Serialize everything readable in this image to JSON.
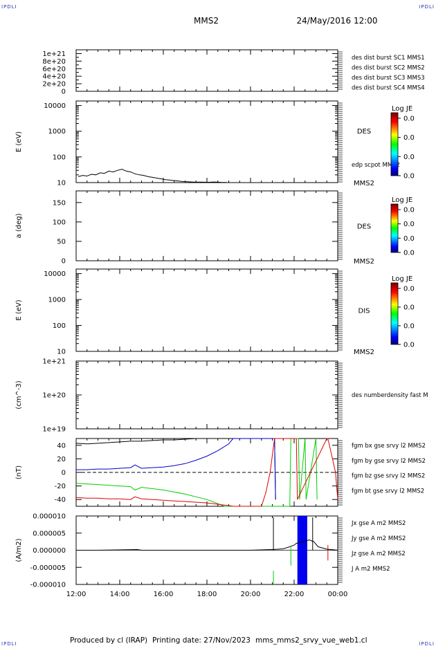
{
  "header": {
    "spacecraft": "MMS2",
    "date": "24/May/2016 12:00",
    "corner_left": "IPDLI",
    "corner_right": "IPDLI",
    "corner_bottom_left": "IPDLI",
    "corner_bottom_right": "IPDLI"
  },
  "footer": {
    "produced": "Produced by cl (IRAP)",
    "printing": "Printing date: 27/Nov/2023",
    "file": "mms_mms2_srvy_vue_web1.cl"
  },
  "colors": {
    "black": "#000000",
    "blue": "#0000cc",
    "magenta": "#cc00cc",
    "red": "#dd0000",
    "green": "#00cc00",
    "jx": "#dd0000",
    "jy": "#00cc00",
    "jz": "#0000ee"
  },
  "colorbar": {
    "title": "Log JE",
    "ticks": [
      "0.0",
      "0.0",
      "0.0",
      "0.0"
    ]
  },
  "chart_data": [
    {
      "id": "p1",
      "type": "line",
      "ylabel": "",
      "yticks": [
        "1e+21",
        "8e+20",
        "6e+20",
        "4e+20",
        "2e+20",
        "0"
      ],
      "ylim": [
        0,
        1.1e+21
      ],
      "legend": [
        {
          "text": "des dist burst SC1 MMS1",
          "color": "#0000cc"
        },
        {
          "text": "des dist burst SC2 MMS2",
          "color": "#cc00cc"
        },
        {
          "text": "des dist burst SC3 MMS3",
          "color": "#dd0000"
        },
        {
          "text": "des dist burst SC4 MMS4",
          "color": "#00cc00"
        }
      ],
      "series": []
    },
    {
      "id": "p2",
      "type": "line",
      "ylabel": "E (eV)",
      "yscale": "log",
      "yticks": [
        "10000",
        "1000",
        "100",
        "10"
      ],
      "ylim": [
        10,
        15000
      ],
      "right_label": "DES",
      "right_small": "edp scpot MMS2",
      "bottom_right": "MMS2",
      "series": [
        {
          "name": "edp scpot MMS2",
          "color": "#000000",
          "x": [
            12.1,
            12.3,
            12.5,
            12.7,
            12.9,
            13.1,
            13.3,
            13.5,
            13.7,
            13.9,
            14.1,
            14.3,
            14.5,
            14.7,
            14.9,
            15.1,
            15.3,
            15.5,
            15.7,
            15.9,
            16.1,
            16.3,
            16.5,
            16.7,
            16.9,
            17.1,
            17.3,
            17.5,
            17.7,
            17.9,
            18.1,
            18.3,
            18.5,
            18.7,
            18.9
          ],
          "y": [
            17,
            19,
            18,
            21,
            20,
            24,
            23,
            28,
            26,
            30,
            33,
            28,
            26,
            22,
            20,
            19,
            17,
            16,
            15,
            14,
            13,
            12.5,
            12,
            11.5,
            11,
            10.8,
            10.6,
            10.4,
            10.5,
            10.4,
            10.3,
            10.6,
            10.4,
            10.2,
            10.1
          ]
        }
      ]
    },
    {
      "id": "p3",
      "type": "heatmap",
      "ylabel": "a (deg)",
      "yticks": [
        "150",
        "100",
        "50",
        "0"
      ],
      "ylim": [
        0,
        180
      ],
      "right_label": "DES",
      "bottom_right": "MMS2",
      "series": []
    },
    {
      "id": "p4",
      "type": "heatmap",
      "ylabel": "E (eV)",
      "yscale": "log",
      "yticks": [
        "10000",
        "1000",
        "100",
        "10"
      ],
      "ylim": [
        10,
        15000
      ],
      "right_label": "DIS",
      "bottom_right": "MMS2",
      "series": []
    },
    {
      "id": "p5",
      "type": "line",
      "ylabel": "(cm^-3)",
      "yscale": "log",
      "yticks": [
        "1e+21",
        "1e+20",
        "1e+19"
      ],
      "ylim": [
        1e+19,
        1e+21
      ],
      "right_small": "des numberdensity fast M",
      "series": []
    },
    {
      "id": "p6",
      "type": "line",
      "ylabel": "(nT)",
      "yticks": [
        "40",
        "20",
        "0",
        "-20",
        "-40"
      ],
      "ylim": [
        -50,
        50
      ],
      "legend": [
        {
          "text": "fgm bx gse srvy l2 MMS2",
          "color": "#dd0000"
        },
        {
          "text": "fgm by gse srvy l2 MMS2",
          "color": "#00cc00"
        },
        {
          "text": "fgm bz gse srvy l2 MMS2",
          "color": "#0000cc"
        },
        {
          "text": "fgm bt gse srvy l2 MMS2",
          "color": "#000000"
        }
      ],
      "series": [
        {
          "name": "fgm bt gse srvy l2 MMS2",
          "color": "#000000",
          "x": [
            12.0,
            12.5,
            13.0,
            13.5,
            14.0,
            14.5,
            15.0,
            15.5,
            16.0,
            16.5,
            17.0,
            17.5,
            21.1,
            21.15
          ],
          "y": [
            43,
            42,
            43,
            44,
            45,
            46,
            46,
            47,
            48,
            48,
            49,
            50,
            50,
            -40
          ]
        },
        {
          "name": "fgm bz gse srvy l2 MMS2",
          "color": "#0000cc",
          "x": [
            12.0,
            12.5,
            13.0,
            13.5,
            14.0,
            14.5,
            14.7,
            15.0,
            15.5,
            16.0,
            16.5,
            17.0,
            17.5,
            18.0,
            18.5,
            19.0,
            19.2,
            21.05,
            21.1,
            21.15
          ],
          "y": [
            4,
            4,
            5,
            5,
            6,
            7,
            11,
            6,
            7,
            8,
            10,
            13,
            18,
            24,
            32,
            42,
            50,
            50,
            50,
            -40
          ]
        },
        {
          "name": "fgm by gse srvy l2 MMS2",
          "color": "#00cc00",
          "x": [
            12.0,
            12.5,
            13.0,
            13.5,
            14.0,
            14.5,
            14.7,
            15.0,
            15.5,
            16.0,
            16.5,
            17.0,
            17.5,
            18.0,
            18.5,
            18.8,
            21.8,
            21.85,
            22.2,
            22.25,
            22.5,
            22.55,
            23.0,
            23.05
          ],
          "y": [
            -16,
            -17,
            -18,
            -19,
            -20,
            -21,
            -26,
            -22,
            -24,
            -26,
            -29,
            -32,
            -36,
            -40,
            -46,
            -50,
            -50,
            50,
            50,
            -40,
            50,
            -40,
            50,
            -40
          ]
        },
        {
          "name": "fgm bx gse srvy l2 MMS2",
          "color": "#dd0000",
          "x": [
            12.0,
            12.5,
            13.0,
            13.5,
            14.0,
            14.5,
            14.7,
            15.0,
            15.5,
            16.0,
            16.5,
            17.0,
            17.5,
            18.0,
            18.5,
            19.0,
            19.2,
            20.5,
            20.7,
            20.9,
            21.1,
            22.1,
            22.15,
            23.5,
            23.55,
            23.9,
            24.0
          ],
          "y": [
            -37,
            -38,
            -38,
            -39,
            -39,
            -40,
            -36,
            -39,
            -40,
            -41,
            -42,
            -43,
            -44,
            -45,
            -47,
            -49,
            -50,
            -50,
            -30,
            0,
            50,
            50,
            -40,
            50,
            50,
            0,
            -40
          ]
        }
      ]
    },
    {
      "id": "p7",
      "type": "line",
      "ylabel": "(A/m2)",
      "yticks": [
        "0.000010",
        "0.000005",
        "0.000000",
        "-0.000005",
        "-0.000010"
      ],
      "ylim": [
        -1e-05,
        1e-05
      ],
      "legend": [
        {
          "text": "Jx gse A m2 MMS2",
          "color": "#dd0000"
        },
        {
          "text": "Jy gse A m2 MMS2",
          "color": "#00cc00"
        },
        {
          "text": "Jz gse A m2 MMS2",
          "color": "#0000ee"
        },
        {
          "text": "J A m2 MMS2",
          "color": "#000000"
        }
      ],
      "xticks": [
        "12:00",
        "14:00",
        "16:00",
        "18:00",
        "20:00",
        "22:00",
        "00:00"
      ],
      "xlim": [
        12,
        24
      ],
      "burst": {
        "start": 22.15,
        "end": 22.6
      },
      "series": [
        {
          "name": "J A m2 MMS2",
          "color": "#000000",
          "x": [
            12.0,
            13.0,
            14.0,
            14.8,
            15.0,
            16.0,
            18.0,
            20.0,
            21.0,
            21.5,
            21.8,
            22.0,
            22.1,
            22.7,
            22.9,
            23.1,
            23.5,
            24.0
          ],
          "y": [
            0,
            0,
            1e-07,
            2e-07,
            0,
            0,
            0,
            0,
            2e-07,
            4e-07,
            1e-06,
            1.5e-06,
            2e-06,
            3e-06,
            2.5e-06,
            1e-06,
            3e-07,
            0
          ]
        }
      ]
    }
  ]
}
